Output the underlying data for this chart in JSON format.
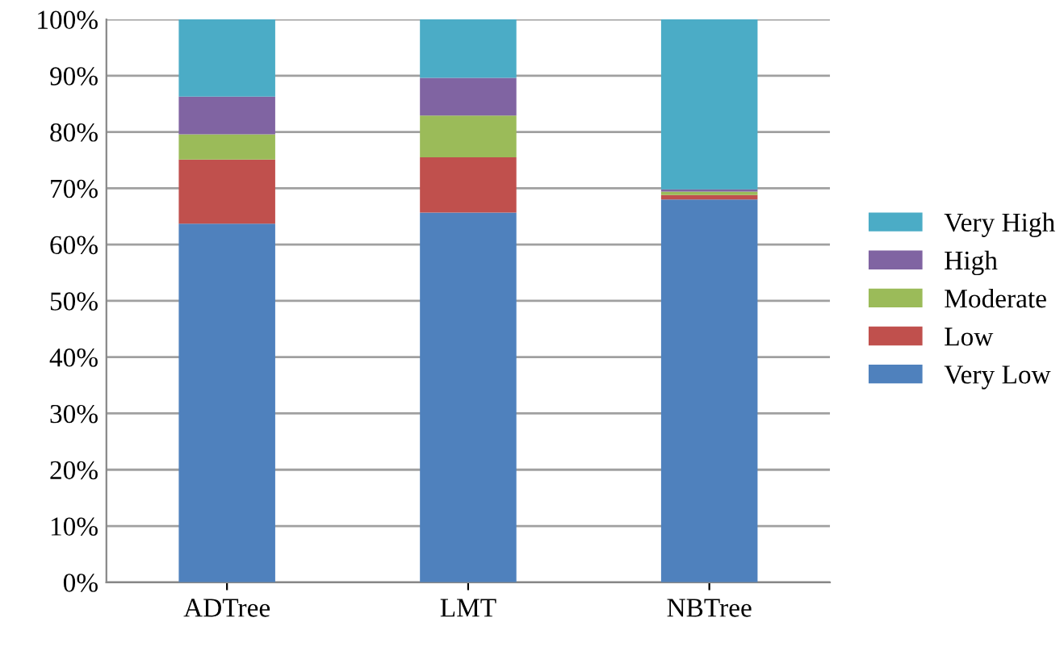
{
  "chart_data": {
    "type": "bar",
    "stacked": true,
    "categories": [
      "ADTree",
      "LMT",
      "NBTree"
    ],
    "series": [
      {
        "name": "Very Low",
        "color": "#4f81bd",
        "values": [
          63.7,
          65.7,
          68
        ]
      },
      {
        "name": "Low",
        "color": "#c0504d",
        "values": [
          11.4,
          9.8,
          0.8
        ]
      },
      {
        "name": "Moderate",
        "color": "#9bbb59",
        "values": [
          4.5,
          7.4,
          0.6
        ]
      },
      {
        "name": "High",
        "color": "#8064a2",
        "values": [
          6.7,
          6.7,
          0.4
        ]
      },
      {
        "name": "Very High",
        "color": "#4bacc6",
        "values": [
          13.7,
          10.4,
          30.2
        ]
      }
    ],
    "ylim": [
      0,
      100
    ],
    "yticks": [
      {
        "value": 0,
        "label": "0%"
      },
      {
        "value": 10,
        "label": "10%"
      },
      {
        "value": 20,
        "label": "20%"
      },
      {
        "value": 30,
        "label": "30%"
      },
      {
        "value": 40,
        "label": "40%"
      },
      {
        "value": 50,
        "label": "50%"
      },
      {
        "value": 60,
        "label": "60%"
      },
      {
        "value": 70,
        "label": "70%"
      },
      {
        "value": 80,
        "label": "80%"
      },
      {
        "value": 90,
        "label": "90%"
      },
      {
        "value": 100,
        "label": "100%"
      }
    ],
    "grid": "y",
    "legend": "right"
  }
}
